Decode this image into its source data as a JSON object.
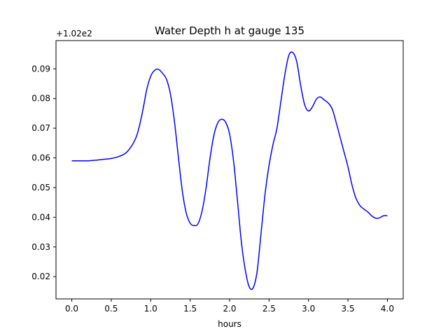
{
  "chart_data": {
    "type": "line",
    "title": "Water Depth h at gauge 135",
    "xlabel": "hours",
    "ylabel": "",
    "y_offset_label": "+1.02e2",
    "xlim": [
      -0.2,
      4.2
    ],
    "ylim": [
      0.0125,
      0.0995
    ],
    "x_ticks": [
      0.0,
      0.5,
      1.0,
      1.5,
      2.0,
      2.5,
      3.0,
      3.5,
      4.0
    ],
    "x_tick_labels": [
      "0.0",
      "0.5",
      "1.0",
      "1.5",
      "2.0",
      "2.5",
      "3.0",
      "3.5",
      "4.0"
    ],
    "y_ticks": [
      0.02,
      0.03,
      0.04,
      0.05,
      0.06,
      0.07,
      0.08,
      0.09
    ],
    "y_tick_labels": [
      "0.02",
      "0.03",
      "0.04",
      "0.05",
      "0.06",
      "0.07",
      "0.08",
      "0.09"
    ],
    "grid": false,
    "series": [
      {
        "color": "#0000ff",
        "x": [
          0.0,
          0.1,
          0.2,
          0.3,
          0.4,
          0.5,
          0.6,
          0.7,
          0.8,
          0.85,
          0.9,
          0.95,
          1.0,
          1.05,
          1.1,
          1.15,
          1.2,
          1.25,
          1.3,
          1.35,
          1.4,
          1.45,
          1.5,
          1.55,
          1.6,
          1.65,
          1.7,
          1.75,
          1.8,
          1.85,
          1.9,
          1.95,
          2.0,
          2.05,
          2.1,
          2.15,
          2.2,
          2.25,
          2.3,
          2.35,
          2.4,
          2.45,
          2.5,
          2.55,
          2.6,
          2.65,
          2.7,
          2.75,
          2.8,
          2.85,
          2.9,
          2.95,
          3.0,
          3.05,
          3.1,
          3.15,
          3.2,
          3.25,
          3.3,
          3.35,
          3.4,
          3.45,
          3.5,
          3.55,
          3.6,
          3.65,
          3.7,
          3.75,
          3.8,
          3.85,
          3.9,
          3.95,
          4.0
        ],
        "y": [
          0.059,
          0.059,
          0.059,
          0.0592,
          0.0595,
          0.0598,
          0.0605,
          0.062,
          0.066,
          0.07,
          0.076,
          0.083,
          0.0875,
          0.0895,
          0.0898,
          0.0885,
          0.0865,
          0.0815,
          0.0725,
          0.0605,
          0.049,
          0.0415,
          0.038,
          0.0372,
          0.0378,
          0.042,
          0.0495,
          0.0595,
          0.0675,
          0.0718,
          0.073,
          0.072,
          0.068,
          0.059,
          0.0455,
          0.0315,
          0.022,
          0.0165,
          0.0163,
          0.022,
          0.035,
          0.048,
          0.0575,
          0.0645,
          0.07,
          0.079,
          0.088,
          0.0945,
          0.0955,
          0.0925,
          0.0845,
          0.078,
          0.0758,
          0.0772,
          0.0798,
          0.0805,
          0.0795,
          0.0785,
          0.0765,
          0.072,
          0.067,
          0.062,
          0.057,
          0.051,
          0.0465,
          0.044,
          0.0428,
          0.0418,
          0.0405,
          0.0397,
          0.0398,
          0.0405,
          0.0405
        ]
      }
    ]
  }
}
